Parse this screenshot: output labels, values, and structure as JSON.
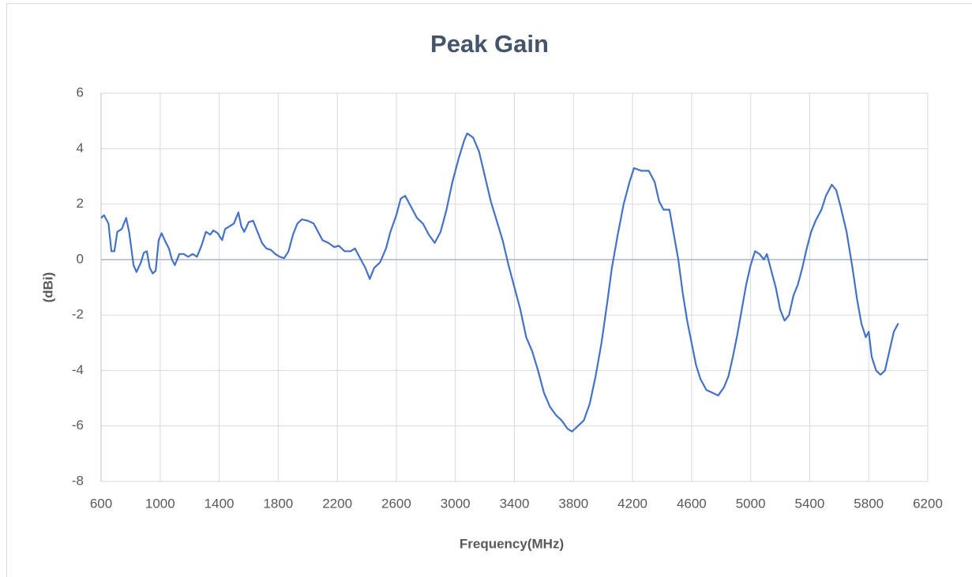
{
  "chart_data": {
    "type": "line",
    "title": "Peak Gain",
    "x_label": "Frequency(MHz)",
    "y_label": "(dBi)",
    "x": [
      600,
      620,
      650,
      670,
      690,
      710,
      740,
      770,
      790,
      820,
      840,
      870,
      890,
      910,
      930,
      950,
      970,
      990,
      1010,
      1040,
      1060,
      1080,
      1100,
      1130,
      1160,
      1190,
      1220,
      1250,
      1280,
      1310,
      1340,
      1360,
      1390,
      1420,
      1440,
      1470,
      1500,
      1530,
      1550,
      1570,
      1600,
      1630,
      1660,
      1690,
      1720,
      1750,
      1780,
      1810,
      1840,
      1870,
      1900,
      1930,
      1960,
      2000,
      2040,
      2070,
      2100,
      2140,
      2180,
      2210,
      2250,
      2290,
      2320,
      2360,
      2390,
      2420,
      2450,
      2490,
      2530,
      2560,
      2600,
      2630,
      2660,
      2700,
      2740,
      2780,
      2820,
      2860,
      2900,
      2940,
      2980,
      3020,
      3060,
      3080,
      3120,
      3160,
      3200,
      3240,
      3280,
      3320,
      3360,
      3400,
      3440,
      3480,
      3520,
      3560,
      3600,
      3640,
      3680,
      3720,
      3760,
      3790,
      3830,
      3870,
      3910,
      3950,
      3990,
      4030,
      4060,
      4100,
      4140,
      4180,
      4210,
      4260,
      4310,
      4350,
      4380,
      4410,
      4450,
      4480,
      4510,
      4540,
      4570,
      4600,
      4630,
      4660,
      4700,
      4740,
      4780,
      4820,
      4850,
      4880,
      4910,
      4940,
      4970,
      5000,
      5030,
      5060,
      5090,
      5110,
      5140,
      5170,
      5200,
      5230,
      5260,
      5290,
      5320,
      5350,
      5380,
      5410,
      5440,
      5480,
      5510,
      5550,
      5580,
      5610,
      5650,
      5690,
      5720,
      5750,
      5780,
      5800,
      5820,
      5850,
      5880,
      5910,
      5940,
      5970,
      6000
    ],
    "series": [
      {
        "name": "Peak Gain",
        "color": "#4472c4",
        "values": [
          1.5,
          1.6,
          1.3,
          0.3,
          0.3,
          1.0,
          1.1,
          1.5,
          1.0,
          -0.2,
          -0.45,
          -0.1,
          0.25,
          0.3,
          -0.3,
          -0.5,
          -0.4,
          0.7,
          0.95,
          0.6,
          0.4,
          0.0,
          -0.2,
          0.2,
          0.2,
          0.1,
          0.2,
          0.1,
          0.5,
          1.0,
          0.9,
          1.05,
          0.95,
          0.7,
          1.1,
          1.2,
          1.3,
          1.7,
          1.2,
          1.0,
          1.35,
          1.4,
          1.0,
          0.6,
          0.4,
          0.35,
          0.2,
          0.1,
          0.05,
          0.3,
          0.9,
          1.3,
          1.45,
          1.4,
          1.3,
          1.0,
          0.7,
          0.6,
          0.45,
          0.5,
          0.3,
          0.3,
          0.4,
          0.0,
          -0.3,
          -0.7,
          -0.3,
          -0.1,
          0.4,
          1.0,
          1.6,
          2.2,
          2.3,
          1.9,
          1.5,
          1.3,
          0.9,
          0.6,
          1.0,
          1.8,
          2.8,
          3.6,
          4.3,
          4.55,
          4.4,
          3.9,
          3.0,
          2.1,
          1.4,
          0.7,
          -0.2,
          -1.0,
          -1.8,
          -2.8,
          -3.3,
          -4.0,
          -4.8,
          -5.3,
          -5.6,
          -5.8,
          -6.1,
          -6.2,
          -6.0,
          -5.8,
          -5.2,
          -4.2,
          -3.0,
          -1.5,
          -0.3,
          0.9,
          2.0,
          2.8,
          3.3,
          3.2,
          3.2,
          2.8,
          2.1,
          1.8,
          1.8,
          0.9,
          0.0,
          -1.2,
          -2.2,
          -3.0,
          -3.8,
          -4.3,
          -4.7,
          -4.8,
          -4.9,
          -4.6,
          -4.2,
          -3.5,
          -2.7,
          -1.8,
          -0.9,
          -0.2,
          0.3,
          0.2,
          0.0,
          0.2,
          -0.4,
          -1.0,
          -1.8,
          -2.2,
          -2.0,
          -1.3,
          -0.9,
          -0.3,
          0.4,
          1.0,
          1.4,
          1.8,
          2.3,
          2.7,
          2.5,
          1.9,
          1.0,
          -0.3,
          -1.4,
          -2.3,
          -2.8,
          -2.6,
          -3.5,
          -4.0,
          -4.15,
          -4.0,
          -3.3,
          -2.6,
          -2.3
        ]
      }
    ],
    "xlim": [
      600,
      6200
    ],
    "xticks": [
      600,
      1000,
      1400,
      1800,
      2200,
      2600,
      3000,
      3400,
      3800,
      4200,
      4600,
      5000,
      5400,
      5800,
      6200
    ],
    "ylim": [
      -8,
      6
    ],
    "yticks": [
      -8,
      -6,
      -4,
      -2,
      0,
      2,
      4,
      6
    ],
    "grid": true
  }
}
